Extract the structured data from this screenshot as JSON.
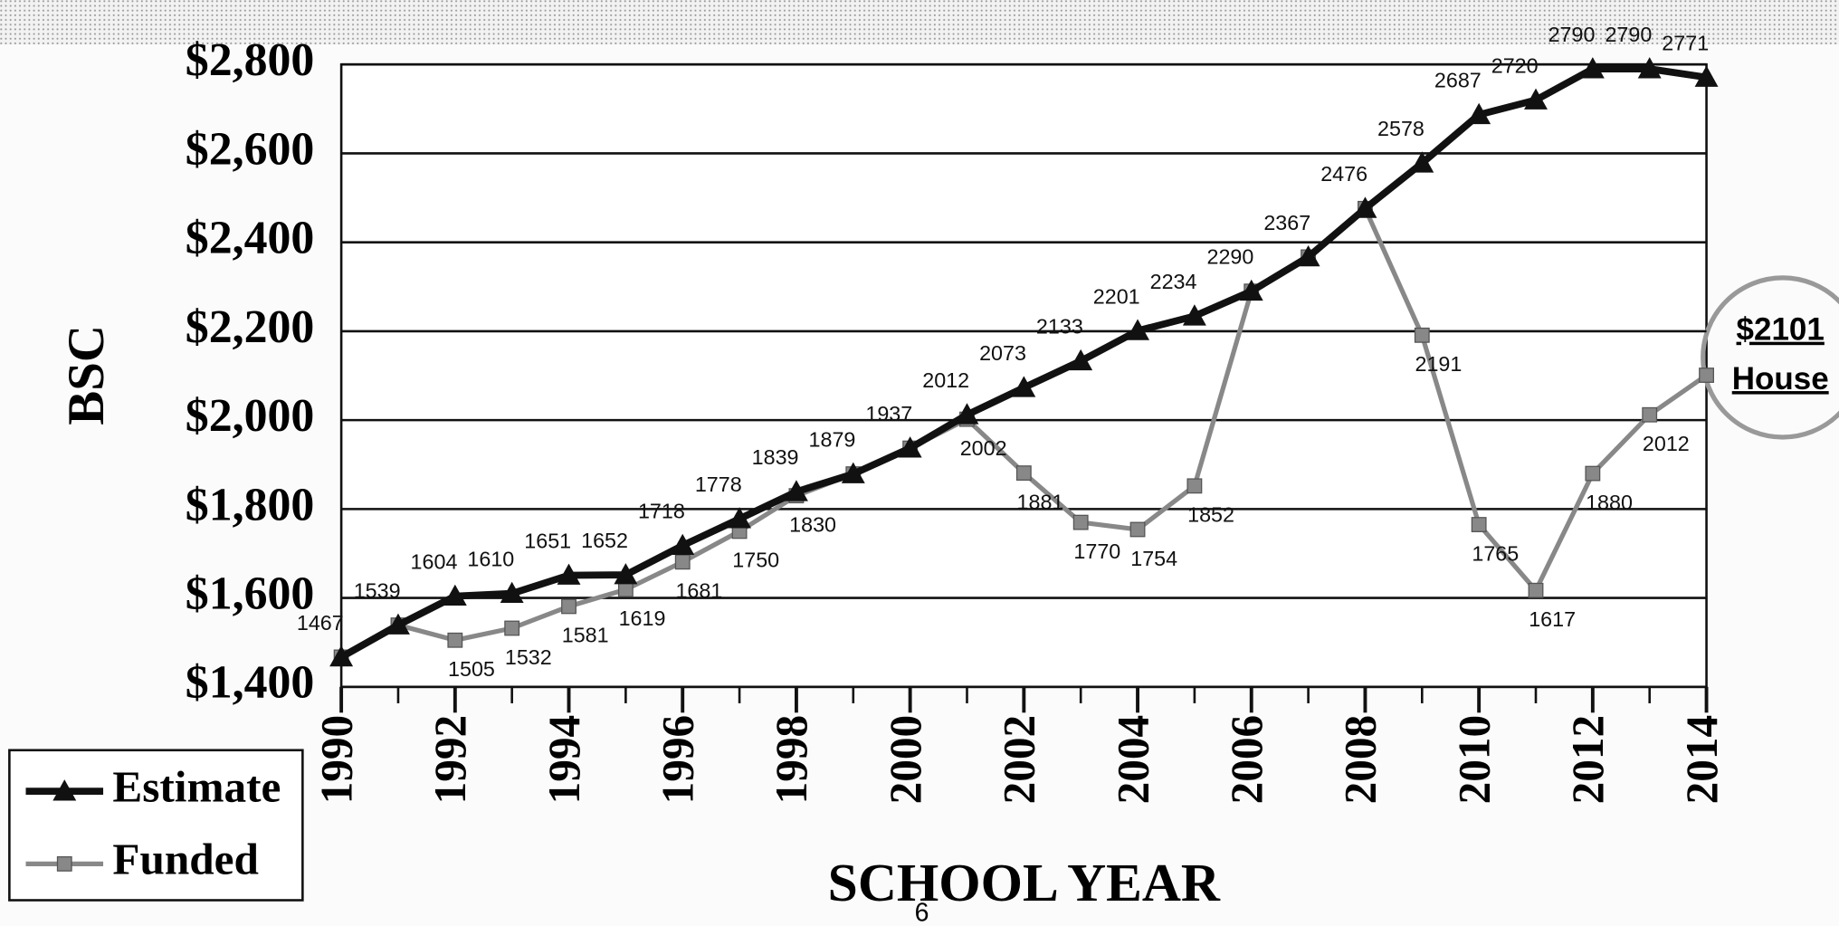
{
  "chart_data": {
    "type": "line",
    "y_label": "BSC",
    "x_label": "SCHOOL YEAR",
    "page_number": "6",
    "x": [
      1990,
      1991,
      1992,
      1993,
      1994,
      1995,
      1996,
      1997,
      1998,
      1999,
      2000,
      2001,
      2002,
      2003,
      2004,
      2005,
      2006,
      2007,
      2008,
      2009,
      2010,
      2011,
      2012,
      2013,
      2014
    ],
    "xlim": [
      1990,
      2014
    ],
    "xticks": [
      1990,
      1992,
      1994,
      1996,
      1998,
      2000,
      2002,
      2004,
      2006,
      2008,
      2010,
      2012,
      2014
    ],
    "ylim": [
      1400,
      2800
    ],
    "yticks": [
      {
        "value": 1400,
        "label": "$1,400"
      },
      {
        "value": 1600,
        "label": "$1,600"
      },
      {
        "value": 1800,
        "label": "$1,800"
      },
      {
        "value": 2000,
        "label": "$2,000"
      },
      {
        "value": 2200,
        "label": "$2,200"
      },
      {
        "value": 2400,
        "label": "$2,400"
      },
      {
        "value": 2600,
        "label": "$2,600"
      },
      {
        "value": 2800,
        "label": "$2,800"
      }
    ],
    "grid": true,
    "legend": "bottom-left",
    "series": [
      {
        "name": "Estimate",
        "color": "#111111",
        "marker": "triangle",
        "values": [
          1467,
          1539,
          1604,
          1610,
          1651,
          1652,
          1718,
          1778,
          1839,
          1879,
          1937,
          2012,
          2073,
          2133,
          2201,
          2234,
          2290,
          2367,
          2476,
          2578,
          2687,
          2720,
          2790,
          2790,
          2771
        ],
        "value_labels": [
          "1467",
          "1539",
          "1604",
          "1610",
          "1651",
          "1652",
          "1718",
          "1778",
          "1839",
          "1879",
          "1937",
          "2012",
          "2073",
          "2133",
          "2201",
          "2234",
          "2290",
          "2367",
          "2476",
          "2578",
          "2687",
          "2720",
          "2790",
          "2790",
          "2771"
        ]
      },
      {
        "name": "Funded",
        "color": "#888888",
        "marker": "square",
        "values": [
          1467,
          1539,
          1505,
          1532,
          1581,
          1619,
          1681,
          1750,
          1830,
          1879,
          1937,
          2002,
          1881,
          1770,
          1754,
          1852,
          2290,
          2367,
          2476,
          2191,
          1765,
          1617,
          1880,
          2012,
          2101
        ],
        "value_labels": [
          null,
          null,
          "1505",
          "1532",
          "1581",
          "1619",
          "1681",
          "1750",
          "1830",
          null,
          null,
          "2002",
          "1881",
          "1770",
          "1754",
          "1852",
          null,
          null,
          null,
          "2191",
          "1765",
          "1617",
          "1880",
          "2012",
          "$2101"
        ]
      }
    ],
    "annotation": "House"
  }
}
